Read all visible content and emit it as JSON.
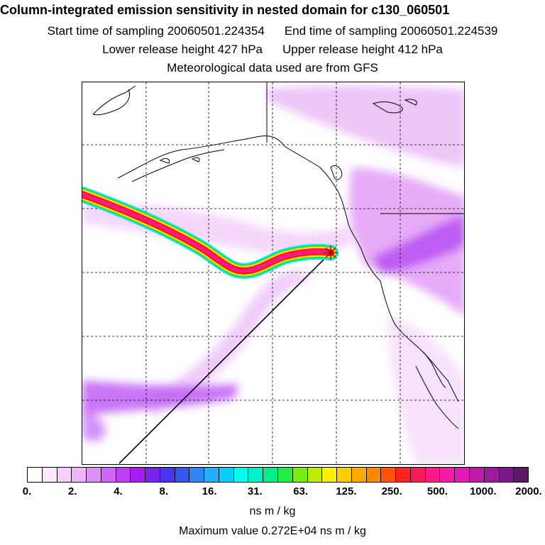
{
  "header": {
    "title": "Column-integrated emission sensitivity in nested domain for c130_060501",
    "start_label": "Start time of sampling 20060501.224354",
    "end_label": "End time of sampling 20060501.224539",
    "lower_label": "Lower release height  427 hPa",
    "upper_label": "Upper release height  412 hPa",
    "met_label": "Meteorological data used are from GFS"
  },
  "map": {
    "release_marker": "release-site-star",
    "plume_colors": [
      "#00e5ff",
      "#33dd33",
      "#ffee00",
      "#ff1a1a",
      "#ff1a8c"
    ],
    "background_field_color": "#cc66ff",
    "coastline_color": "#000000",
    "grid_style": "dashed"
  },
  "colorbar": {
    "tick_labels": [
      "0.",
      "2.",
      "4.",
      "8.",
      "16.",
      "31.",
      "63.",
      "125.",
      "250.",
      "500.",
      "1000.",
      "2000."
    ],
    "colors": [
      "#ffffff",
      "#fbe8fb",
      "#f6d0fb",
      "#efb6fb",
      "#e28ef8",
      "#d066f6",
      "#bf3ff5",
      "#a81ef0",
      "#7a22ee",
      "#4a34ee",
      "#3358ee",
      "#2d86f4",
      "#22aef8",
      "#00d0ff",
      "#00ffee",
      "#00f2cc",
      "#00ee88",
      "#22ee44",
      "#77ee11",
      "#bbee00",
      "#ffee00",
      "#ffcc00",
      "#ffaa00",
      "#ff8800",
      "#ff5500",
      "#ff2222",
      "#ff1a55",
      "#ff1a88",
      "#f81aaa",
      "#e01ab4",
      "#c01aaa",
      "#9c1a9c",
      "#7a1a88",
      "#5a1a66"
    ],
    "units": "ns m / kg"
  },
  "footer": {
    "max_value_label": "Maximum value  0.272E+04 ns m / kg"
  }
}
